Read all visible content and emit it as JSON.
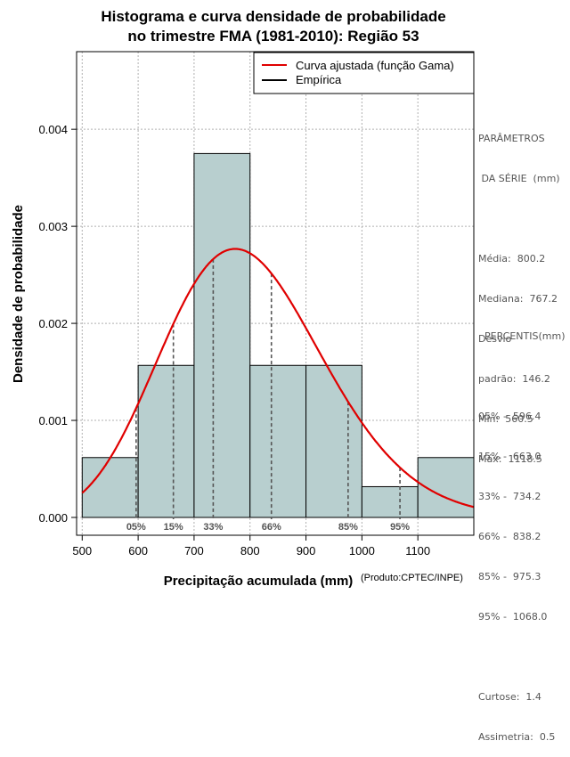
{
  "chart_data": {
    "type": "histogram",
    "title_line1": "Histograma e curva densidade de probabilidade",
    "title_line2": "no trimestre FMA (1981-2010): Região 53",
    "xlabel": "Precipitação acumulada (mm)",
    "ylabel": "Densidade de probabilidade",
    "credit": "(Produto:CPTEC/INPE)",
    "xlim": [
      490,
      1200
    ],
    "ylim": [
      0,
      0.0048
    ],
    "xticks": [
      500,
      600,
      700,
      800,
      900,
      1000,
      1100
    ],
    "xtick_labels": [
      "500",
      "600",
      "700",
      "800",
      "900",
      "1000",
      "1100"
    ],
    "yticks": [
      0,
      0.001,
      0.002,
      0.003,
      0.004
    ],
    "ytick_labels": [
      "0.000",
      "0.001",
      "0.002",
      "0.003",
      "0.004"
    ],
    "grid": true,
    "bins": [
      {
        "start": 500,
        "end": 600,
        "density": 0.000617
      },
      {
        "start": 600,
        "end": 700,
        "density": 0.001567
      },
      {
        "start": 700,
        "end": 800,
        "density": 0.00375
      },
      {
        "start": 800,
        "end": 900,
        "density": 0.001567
      },
      {
        "start": 900,
        "end": 1000,
        "density": 0.001567
      },
      {
        "start": 1000,
        "end": 1100,
        "density": 0.000317
      },
      {
        "start": 1100,
        "end": 1200,
        "density": 0.000617
      }
    ],
    "bar_color": "#b8cfcf",
    "curve_color": "#e00000",
    "gamma_fit": {
      "mean": 800.2,
      "sd": 146.2
    },
    "percentile_markers": [
      {
        "label": "05%",
        "value": 596.4
      },
      {
        "label": "15%",
        "value": 663.0
      },
      {
        "label": "33%",
        "value": 734.2
      },
      {
        "label": "66%",
        "value": 838.2
      },
      {
        "label": "85%",
        "value": 975.3
      },
      {
        "label": "95%",
        "value": 1068.0
      }
    ],
    "legend": [
      {
        "label": "Curva ajustada (função Gama)",
        "color": "#e00000"
      },
      {
        "label": "Empírica",
        "color": "#000000"
      }
    ],
    "legend_position": "top-right"
  },
  "parametros": {
    "title1": "PARÂMETROS",
    "title2": " DA SÉRIE  (mm)",
    "media": "Média:  800.2",
    "mediana": "Mediana:  767.2",
    "desvio1": "Desvio",
    "desvio2": "padrão:  146.2",
    "min": "Mín:  560.5",
    "max": "Máx:  1118.5"
  },
  "percentis": {
    "title": "PERCENTIS(mm)",
    "p05": "05% -  596.4",
    "p15": "15% -  663.0",
    "p33": "33% -  734.2",
    "p66": "66% -  838.2",
    "p85": "85% -  975.3",
    "p95": "95% -  1068.0",
    "curtose": "Curtose:  1.4",
    "assimetria": "Assimetria:  0.5"
  }
}
